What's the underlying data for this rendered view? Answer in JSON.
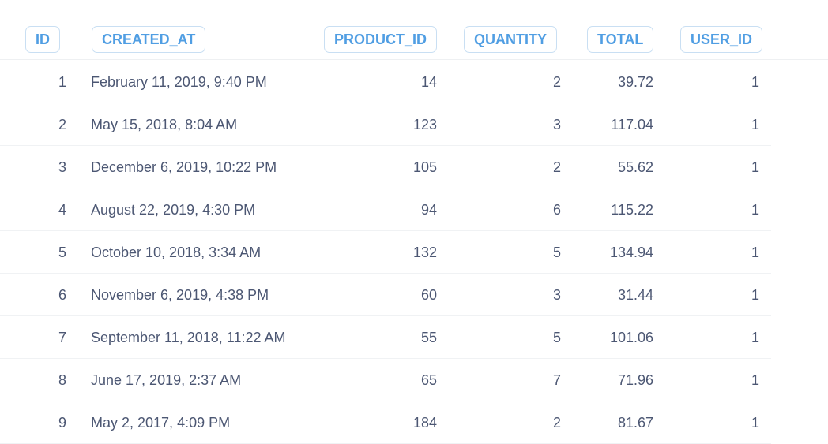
{
  "table": {
    "columns": [
      "ID",
      "CREATED_AT",
      "PRODUCT_ID",
      "QUANTITY",
      "TOTAL",
      "USER_ID"
    ],
    "rows": [
      {
        "id": "1",
        "created_at": "February 11, 2019, 9:40 PM",
        "product_id": "14",
        "quantity": "2",
        "total": "39.72",
        "user_id": "1"
      },
      {
        "id": "2",
        "created_at": "May 15, 2018, 8:04 AM",
        "product_id": "123",
        "quantity": "3",
        "total": "117.04",
        "user_id": "1"
      },
      {
        "id": "3",
        "created_at": "December 6, 2019, 10:22 PM",
        "product_id": "105",
        "quantity": "2",
        "total": "55.62",
        "user_id": "1"
      },
      {
        "id": "4",
        "created_at": "August 22, 2019, 4:30 PM",
        "product_id": "94",
        "quantity": "6",
        "total": "115.22",
        "user_id": "1"
      },
      {
        "id": "5",
        "created_at": "October 10, 2018, 3:34 AM",
        "product_id": "132",
        "quantity": "5",
        "total": "134.94",
        "user_id": "1"
      },
      {
        "id": "6",
        "created_at": "November 6, 2019, 4:38 PM",
        "product_id": "60",
        "quantity": "3",
        "total": "31.44",
        "user_id": "1"
      },
      {
        "id": "7",
        "created_at": "September 11, 2018, 11:22 AM",
        "product_id": "55",
        "quantity": "5",
        "total": "101.06",
        "user_id": "1"
      },
      {
        "id": "8",
        "created_at": "June 17, 2019, 2:37 AM",
        "product_id": "65",
        "quantity": "7",
        "total": "71.96",
        "user_id": "1"
      },
      {
        "id": "9",
        "created_at": "May 2, 2017, 4:09 PM",
        "product_id": "184",
        "quantity": "2",
        "total": "81.67",
        "user_id": "1"
      }
    ]
  },
  "colors": {
    "header_text": "#509ee3",
    "header_border": "#c9dff3",
    "cell_text": "#4c5773",
    "row_rule": "#f0f2f4"
  }
}
